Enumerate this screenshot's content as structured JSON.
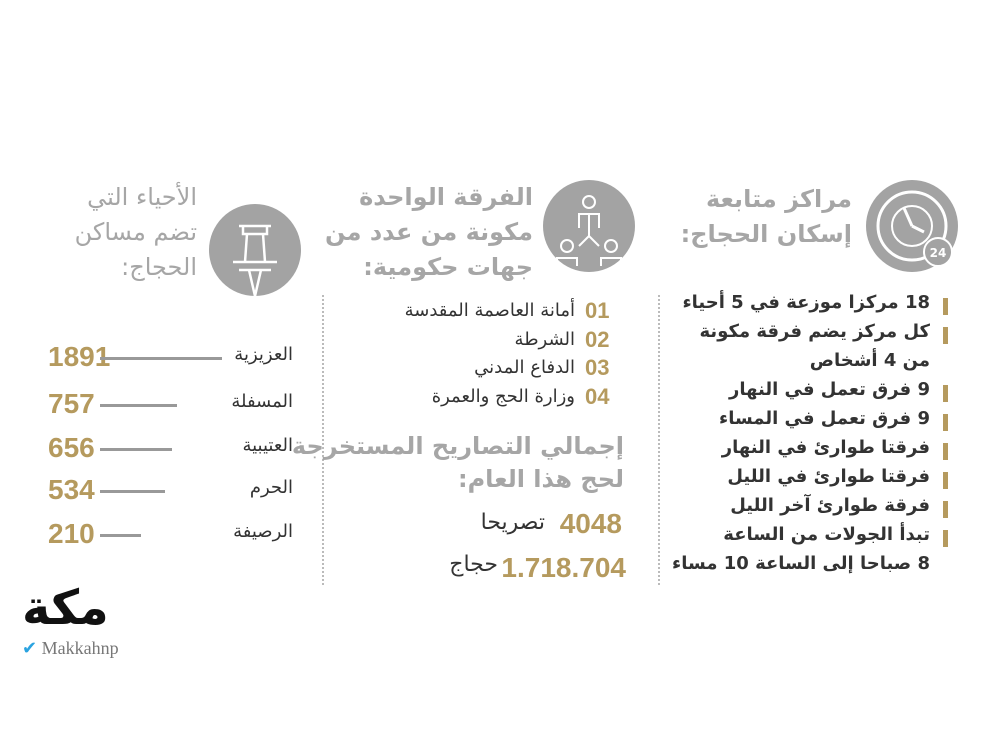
{
  "colors": {
    "accent": "#b59a5e",
    "icon_bg": "#a3a3a3",
    "title": "#a6a6a6",
    "text": "#333333"
  },
  "centers": {
    "icon": "clock-24h-icon",
    "title_lines": [
      "مراكز متابعة",
      "إسكان الحجاج:"
    ],
    "items": [
      "18 مركزا موزعة في 5 أحياء",
      "كل مركز يضم فرقة مكونة",
      "من 4 أشخاص",
      "9 فرق تعمل في النهار",
      "9 فرق تعمل في المساء",
      "فرقتا طوارئ في النهار",
      "فرقتا طوارئ في الليل",
      "فرقة طوارئ آخر الليل",
      "تبدأ الجولات من الساعة",
      "8 صباحا إلى الساعة 10 مساء"
    ],
    "bulleted": [
      true,
      true,
      false,
      true,
      true,
      true,
      true,
      true,
      true,
      false
    ]
  },
  "team": {
    "icon": "team-hierarchy-icon",
    "title_lines": [
      "الفرقة الواحدة",
      "مكونة من عدد من",
      "جهات حكومية:"
    ],
    "members": [
      {
        "num": "01",
        "label": "أمانة العاصمة المقدسة"
      },
      {
        "num": "02",
        "label": "الشرطة"
      },
      {
        "num": "03",
        "label": "الدفاع المدني"
      },
      {
        "num": "04",
        "label": "وزارة الحج والعمرة"
      }
    ],
    "permits_title_lines": [
      "إجمالي التصاريح المستخرجة",
      "لحج هذا العام:"
    ],
    "permits": {
      "value": "4048",
      "label": "تصريحا"
    },
    "pilgrims": {
      "value": "1.718.704",
      "label": "حجاج"
    }
  },
  "districts": {
    "icon": "pushpin-icon",
    "title_lines": [
      "الأحياء التي",
      "تضم مساكن",
      "الحجاج:"
    ],
    "rows": [
      {
        "name": "العزيزية",
        "value": 1891
      },
      {
        "name": "المسفلة",
        "value": 757
      },
      {
        "name": "العتيبية",
        "value": 656
      },
      {
        "name": "الحرم",
        "value": 534
      },
      {
        "name": "الرصيفة",
        "value": 210
      }
    ]
  },
  "logo": {
    "text": "مكة",
    "handle": "Makkahnp",
    "icon": "twitter-bird-icon"
  }
}
